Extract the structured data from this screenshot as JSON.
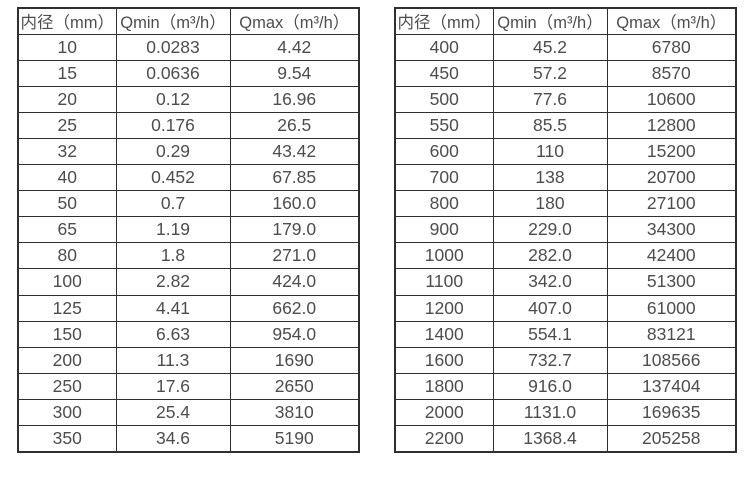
{
  "page": {
    "background": "#ffffff",
    "table_border_color": "#2f2f2f",
    "text_color": "#4d4d4d"
  },
  "tables": [
    {
      "id": "small-diameter-flow-ranges",
      "headers": [
        "内径（mm）",
        "Qmin（m³/h）",
        "Qmax（m³/h）"
      ],
      "rows": [
        [
          "10",
          "0.0283",
          "4.42"
        ],
        [
          "15",
          "0.0636",
          "9.54"
        ],
        [
          "20",
          "0.12",
          "16.96"
        ],
        [
          "25",
          "0.176",
          "26.5"
        ],
        [
          "32",
          "0.29",
          "43.42"
        ],
        [
          "40",
          "0.452",
          "67.85"
        ],
        [
          "50",
          "0.7",
          "160.0"
        ],
        [
          "65",
          "1.19",
          "179.0"
        ],
        [
          "80",
          "1.8",
          "271.0"
        ],
        [
          "100",
          "2.82",
          "424.0"
        ],
        [
          "125",
          "4.41",
          "662.0"
        ],
        [
          "150",
          "6.63",
          "954.0"
        ],
        [
          "200",
          "11.3",
          "1690"
        ],
        [
          "250",
          "17.6",
          "2650"
        ],
        [
          "300",
          "25.4",
          "3810"
        ],
        [
          "350",
          "34.6",
          "5190"
        ]
      ]
    },
    {
      "id": "large-diameter-flow-ranges",
      "headers": [
        "内径（mm）",
        "Qmin（m³/h）",
        "Qmax（m³/h）"
      ],
      "rows": [
        [
          "400",
          "45.2",
          "6780"
        ],
        [
          "450",
          "57.2",
          "8570"
        ],
        [
          "500",
          "77.6",
          "10600"
        ],
        [
          "550",
          "85.5",
          "12800"
        ],
        [
          "600",
          "110",
          "15200"
        ],
        [
          "700",
          "138",
          "20700"
        ],
        [
          "800",
          "180",
          "27100"
        ],
        [
          "900",
          "229.0",
          "34300"
        ],
        [
          "1000",
          "282.0",
          "42400"
        ],
        [
          "1100",
          "342.0",
          "51300"
        ],
        [
          "1200",
          "407.0",
          "61000"
        ],
        [
          "1400",
          "554.1",
          "83121"
        ],
        [
          "1600",
          "732.7",
          "108566"
        ],
        [
          "1800",
          "916.0",
          "137404"
        ],
        [
          "2000",
          "1131.0",
          "169635"
        ],
        [
          "2200",
          "1368.4",
          "205258"
        ]
      ]
    }
  ]
}
